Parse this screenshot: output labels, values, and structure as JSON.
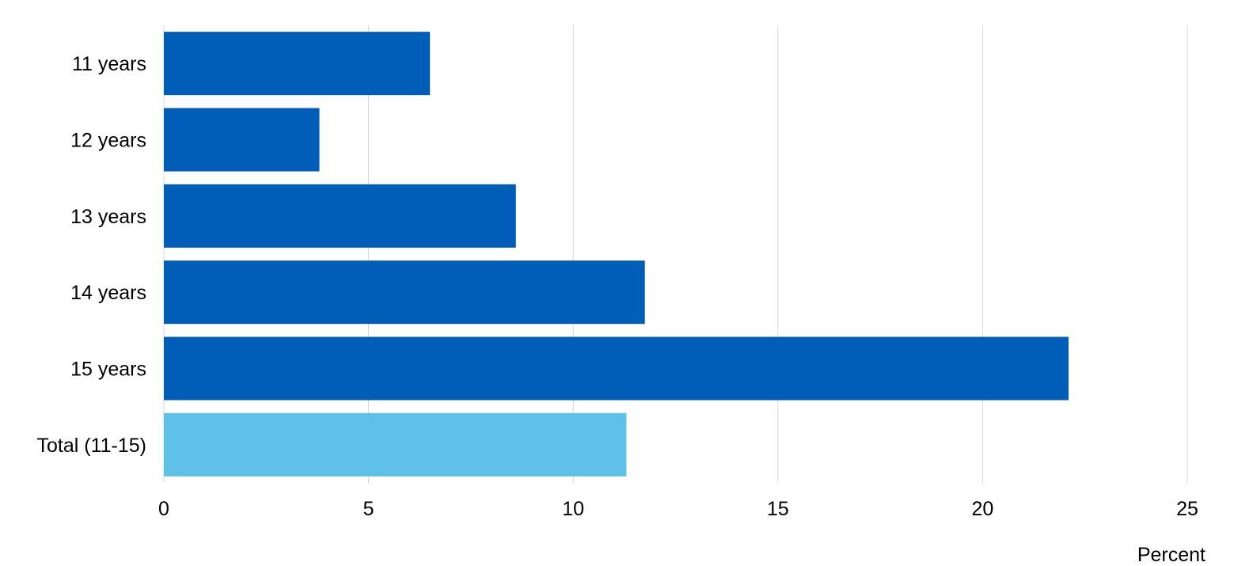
{
  "chart_data": {
    "type": "bar",
    "orientation": "horizontal",
    "categories": [
      "11 years",
      "12 years",
      "13 years",
      "14 years",
      "15 years",
      "Total (11-15)"
    ],
    "values": [
      6.5,
      3.8,
      8.6,
      11.75,
      22.1,
      11.3
    ],
    "xlabel": "Percent",
    "xlim": [
      0,
      25
    ],
    "xticks": [
      "0",
      "5",
      "10",
      "15",
      "20",
      "25"
    ],
    "grid": true,
    "colors": {
      "bar": "#005eb8",
      "highlight_bar": "#5fc0e8",
      "grid": "#d9d9d9"
    },
    "highlight_categories": [
      "Total (11-15)"
    ]
  }
}
